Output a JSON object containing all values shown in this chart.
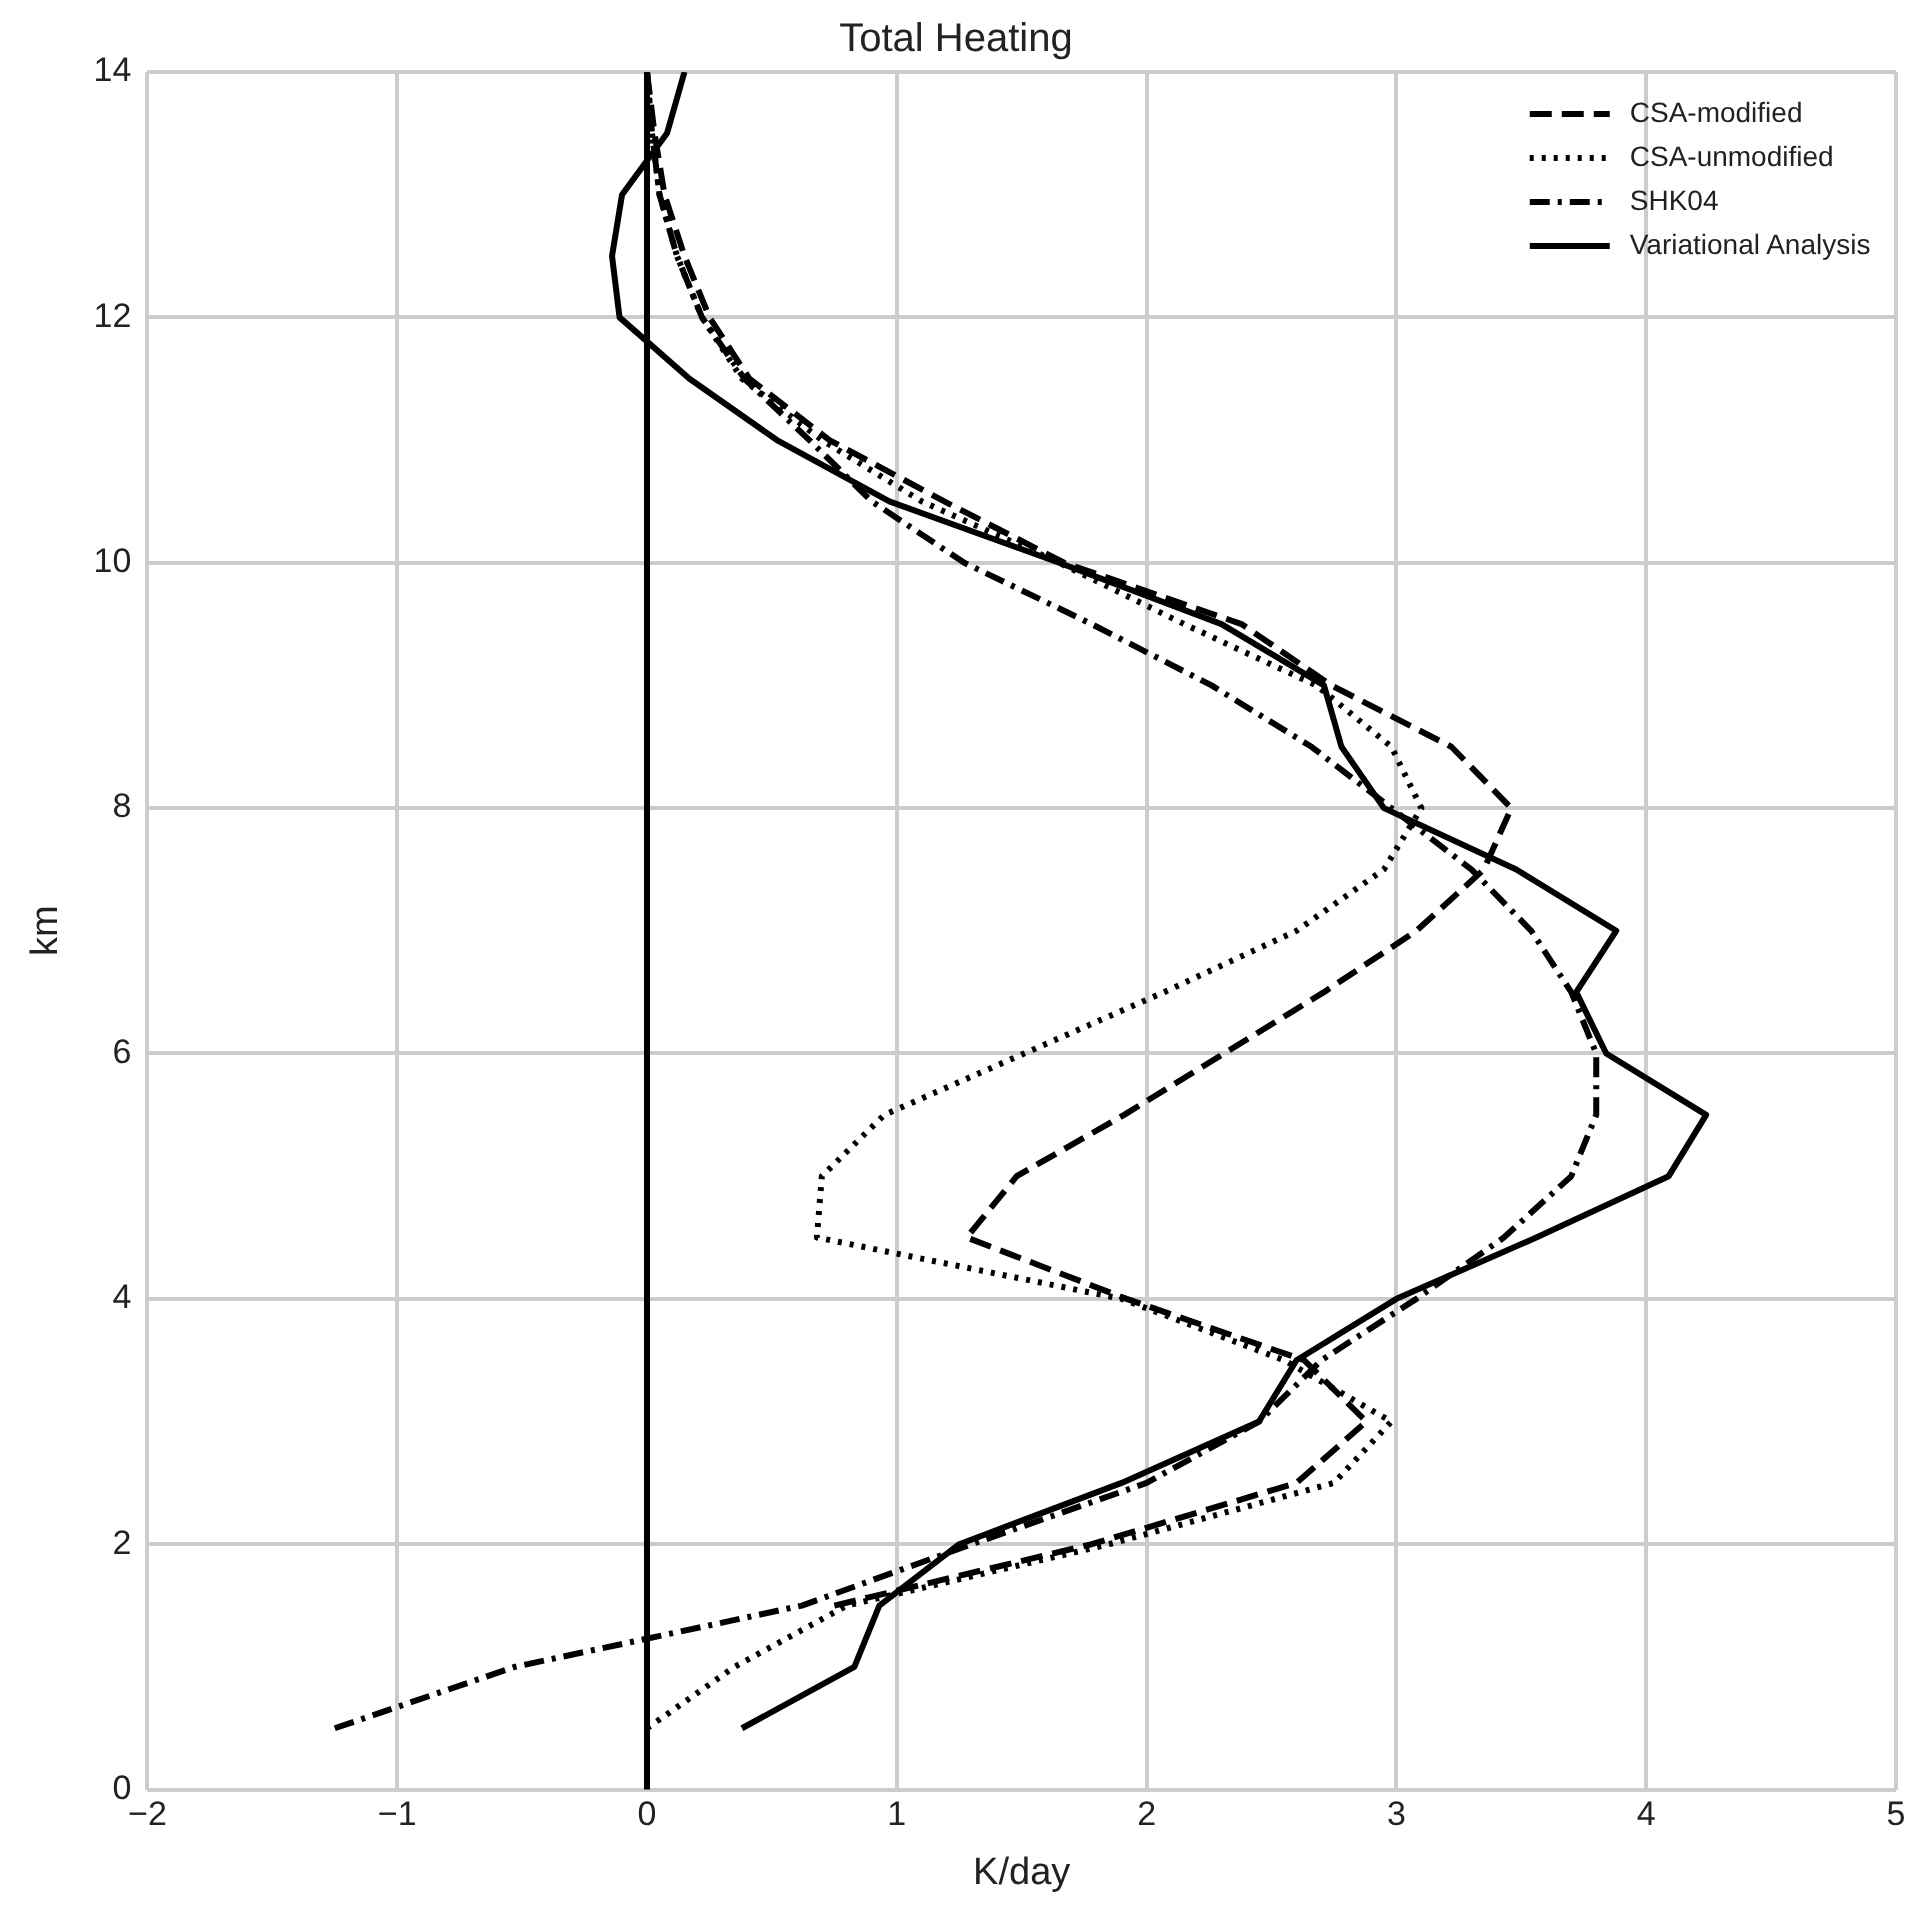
{
  "chart_data": {
    "type": "line",
    "title": "Total Heating",
    "xlabel": "K/day",
    "ylabel": "km",
    "orientation": "horizontal",
    "x": [
      0.5,
      1.0,
      1.5,
      2.0,
      2.5,
      3.0,
      3.5,
      4.0,
      4.5,
      5.0,
      5.5,
      6.0,
      6.5,
      7.0,
      7.5,
      8.0,
      8.5,
      9.0,
      9.5,
      10.0,
      10.5,
      11.0,
      11.5,
      12.0,
      12.5,
      13.0,
      13.5,
      14.0
    ],
    "series": [
      {
        "name": "CSA-modified",
        "color": "#000000",
        "line_style": "dashed",
        "values": [
          null,
          null,
          0.75,
          1.78,
          2.6,
          2.88,
          2.63,
          1.92,
          1.28,
          1.48,
          1.91,
          2.31,
          2.71,
          3.08,
          3.35,
          3.46,
          3.22,
          2.74,
          2.38,
          1.67,
          1.19,
          0.73,
          0.41,
          0.25,
          0.15,
          0.07,
          0.03,
          0.0
        ]
      },
      {
        "name": "CSA-unmodified",
        "color": "#000000",
        "line_style": "dotted",
        "values": [
          0.0,
          0.35,
          0.8,
          1.85,
          2.75,
          2.98,
          2.55,
          1.9,
          0.68,
          0.7,
          0.95,
          1.51,
          2.07,
          2.6,
          2.95,
          3.1,
          2.98,
          2.68,
          2.15,
          1.65,
          1.1,
          0.7,
          0.38,
          0.22,
          0.12,
          0.05,
          0.02,
          0.0
        ]
      },
      {
        "name": "SHK04",
        "color": "#000000",
        "line_style": "dashdot",
        "values": [
          -1.25,
          -0.53,
          0.62,
          1.3,
          2.0,
          2.45,
          2.7,
          3.08,
          3.43,
          3.7,
          3.8,
          3.8,
          3.7,
          3.54,
          3.3,
          2.98,
          2.66,
          2.26,
          1.78,
          1.27,
          0.9,
          0.65,
          0.39,
          0.22,
          0.12,
          0.05,
          0.02,
          0.0
        ]
      },
      {
        "name": "Variational Analysis",
        "color": "#000000",
        "line_style": "solid",
        "values": [
          0.38,
          0.83,
          0.93,
          1.25,
          1.9,
          2.45,
          2.6,
          3.0,
          3.56,
          4.09,
          4.24,
          3.84,
          3.72,
          3.88,
          3.48,
          2.95,
          2.78,
          2.71,
          2.3,
          1.65,
          0.97,
          0.52,
          0.17,
          -0.11,
          -0.14,
          -0.1,
          0.08,
          0.15
        ]
      }
    ],
    "ref_lines": [
      {
        "axis": "x",
        "value": 0,
        "color": "#000000",
        "line_style": "solid"
      }
    ],
    "xlim": [
      -2,
      5
    ],
    "xticks": [
      -2,
      -1,
      0,
      1,
      2,
      3,
      4,
      5
    ],
    "ylim": [
      0,
      14
    ],
    "yticks": [
      0,
      2,
      4,
      6,
      8,
      10,
      12,
      14
    ],
    "grid": true,
    "legend": "top right",
    "marker": "none"
  }
}
